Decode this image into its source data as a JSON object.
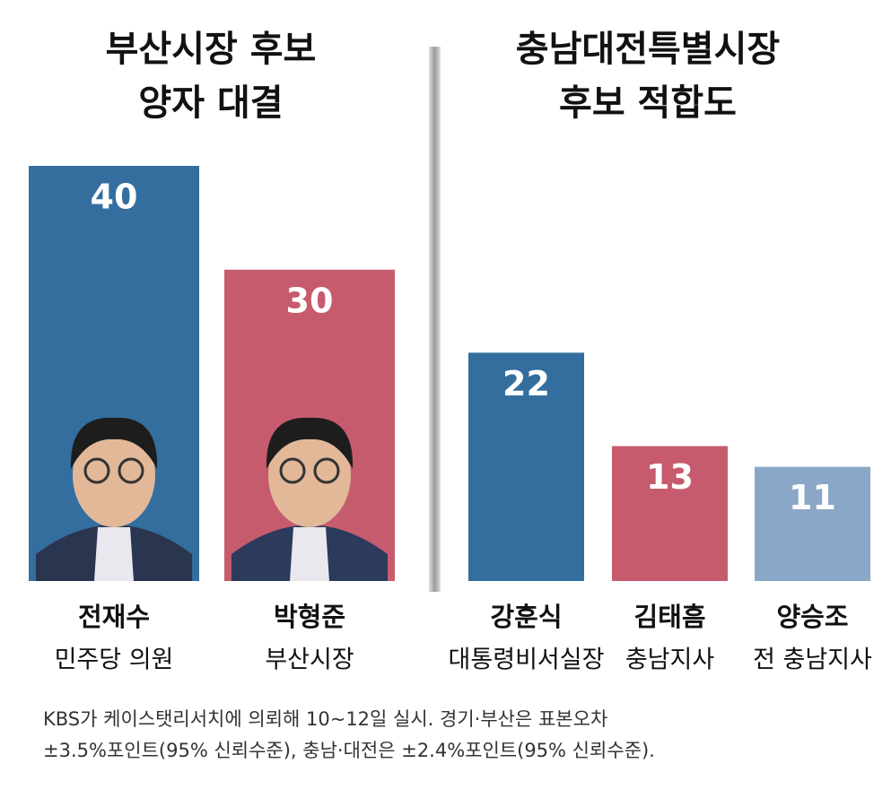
{
  "chart_data": [
    {
      "type": "bar",
      "title": [
        "부산시장 후보",
        "양자 대결"
      ],
      "categories": [
        "전재수",
        "박형준"
      ],
      "category_notes": [
        "민주당 의원",
        "부산시장"
      ],
      "values": [
        40,
        30
      ],
      "colors": [
        "#336e9e",
        "#c75b6e"
      ],
      "ylim": [
        0,
        40
      ]
    },
    {
      "type": "bar",
      "title": [
        "충남대전특별시장",
        "후보 적합도"
      ],
      "categories": [
        "강훈식",
        "김태흠",
        "양승조"
      ],
      "category_notes": [
        "대통령비서실장",
        "충남지사",
        "전 충남지사"
      ],
      "values": [
        22,
        13,
        11
      ],
      "colors": [
        "#336e9e",
        "#c75b6e",
        "#8aa7c8"
      ],
      "ylim": [
        0,
        40
      ]
    }
  ],
  "note": [
    "KBS가 케이스탯리서치에 의뢰해 10~12일 실시. 경기·부산은 표본오차",
    "±3.5%포인트(95% 신뢰수준), 충남·대전은 ±2.4%포인트(95% 신뢰수준)."
  ]
}
